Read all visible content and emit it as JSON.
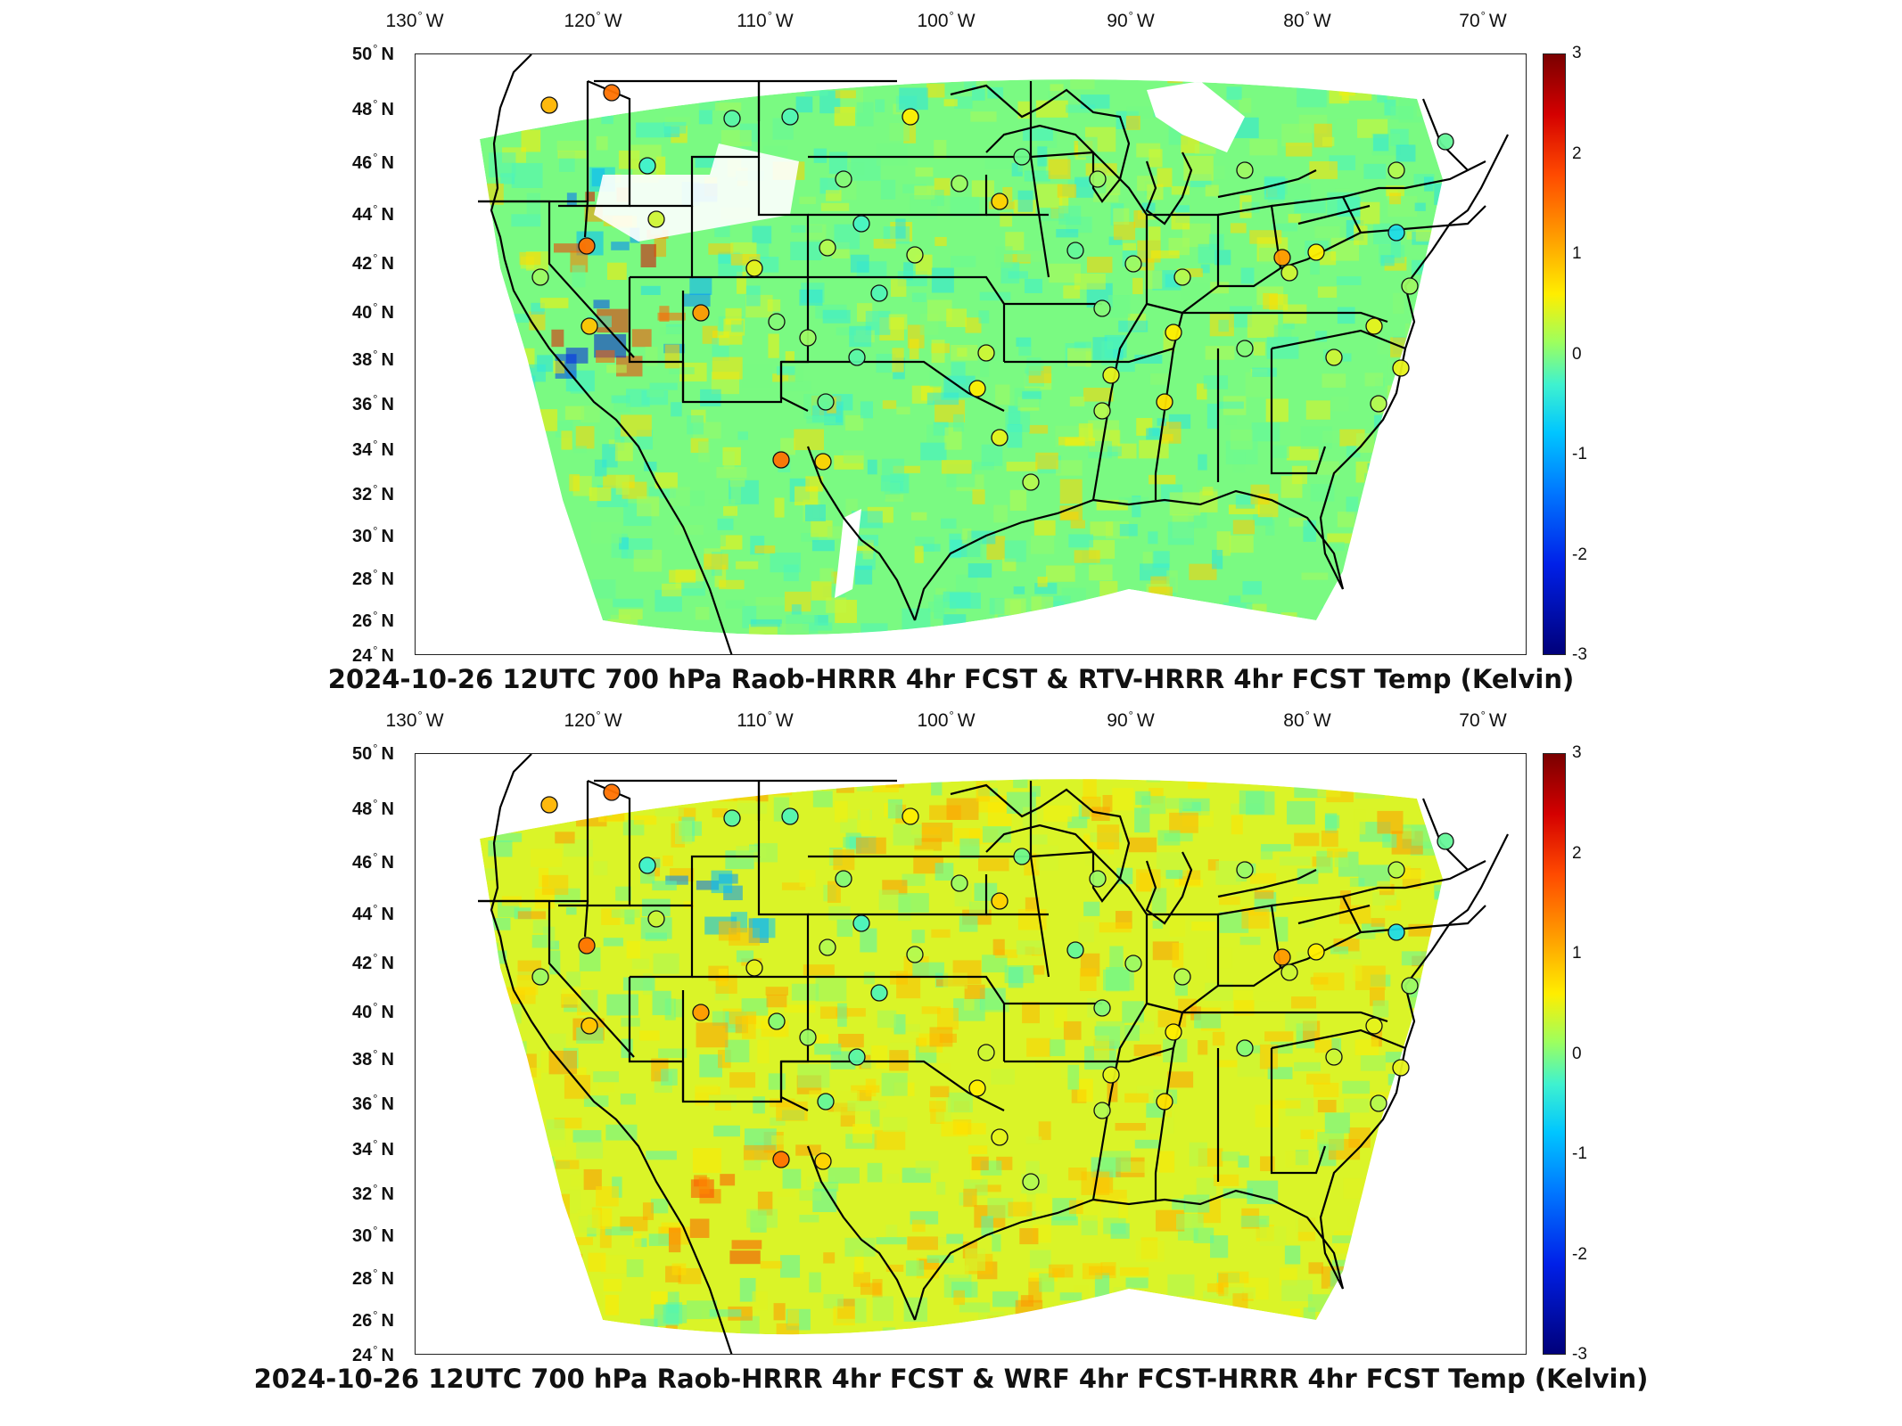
{
  "colors": {
    "frame": "#222222",
    "land": "#ffffff"
  },
  "panels": [
    {
      "title": "2024-10-26 12UTC 700 hPa Raob-HRRR 4hr FCST & RTV-HRRR 4hr FCST Temp (Kelvin)",
      "lon_ticks": [
        "130",
        "120",
        "110",
        "100",
        "90",
        "80",
        "70"
      ],
      "lon_suffix": "W",
      "lat_ticks": [
        "50",
        "48",
        "46",
        "44",
        "42",
        "40",
        "38",
        "36",
        "34",
        "32",
        "30",
        "28",
        "26",
        "24"
      ],
      "lat_suffix": "N",
      "colorbar_ticks": [
        "3",
        "2",
        "1",
        "0",
        "-1",
        "-2",
        "-3"
      ],
      "colorbar_range": [
        -3,
        3
      ],
      "field_bias": "cool",
      "station_values": [
        1.0,
        1.5,
        -0.2,
        -0.5,
        -0.3,
        0.1,
        -0.4,
        0.3,
        0.6,
        0.4,
        1.5,
        0.2,
        0.9,
        1.2,
        0.5,
        0.2,
        0.1,
        -0.3,
        -0.2,
        -0.1,
        0.8,
        1.5,
        0.3,
        0.2,
        0.0,
        0.8,
        0.4,
        0.6,
        0.5,
        0.3,
        0.2,
        -0.1,
        0.1,
        0.5,
        0.3,
        0.7,
        0.2,
        0.3,
        0.6,
        1.2,
        0.1,
        0.4,
        0.2,
        -0.8,
        0.5,
        0.4,
        0.3,
        0.5,
        0.6,
        -0.1,
        0.3,
        0.2
      ]
    },
    {
      "title": "2024-10-26 12UTC 700 hPa Raob-HRRR 4hr FCST & WRF 4hr FCST-HRRR 4hr FCST Temp (Kelvin)",
      "lon_ticks": [
        "130",
        "120",
        "110",
        "100",
        "90",
        "80",
        "70"
      ],
      "lon_suffix": "W",
      "lat_ticks": [
        "50",
        "48",
        "46",
        "44",
        "42",
        "40",
        "38",
        "36",
        "34",
        "32",
        "30",
        "28",
        "26",
        "24"
      ],
      "lat_suffix": "N",
      "colorbar_ticks": [
        "3",
        "2",
        "1",
        "0",
        "-1",
        "-2",
        "-3"
      ],
      "colorbar_range": [
        -3,
        3
      ],
      "field_bias": "warm",
      "station_values": [
        1.0,
        1.5,
        -0.2,
        -0.5,
        -0.3,
        0.1,
        -0.4,
        0.3,
        0.6,
        0.4,
        1.5,
        0.2,
        0.9,
        1.2,
        0.5,
        0.2,
        0.1,
        -0.3,
        -0.2,
        -0.1,
        0.8,
        1.5,
        0.3,
        0.2,
        0.0,
        0.8,
        0.4,
        0.6,
        0.5,
        0.3,
        0.2,
        -0.1,
        0.1,
        0.5,
        0.3,
        0.7,
        0.2,
        0.3,
        0.6,
        1.2,
        0.1,
        0.4,
        0.2,
        -0.8,
        0.5,
        0.4,
        0.3,
        0.5,
        0.6,
        -0.1,
        0.3,
        0.2
      ]
    }
  ]
}
